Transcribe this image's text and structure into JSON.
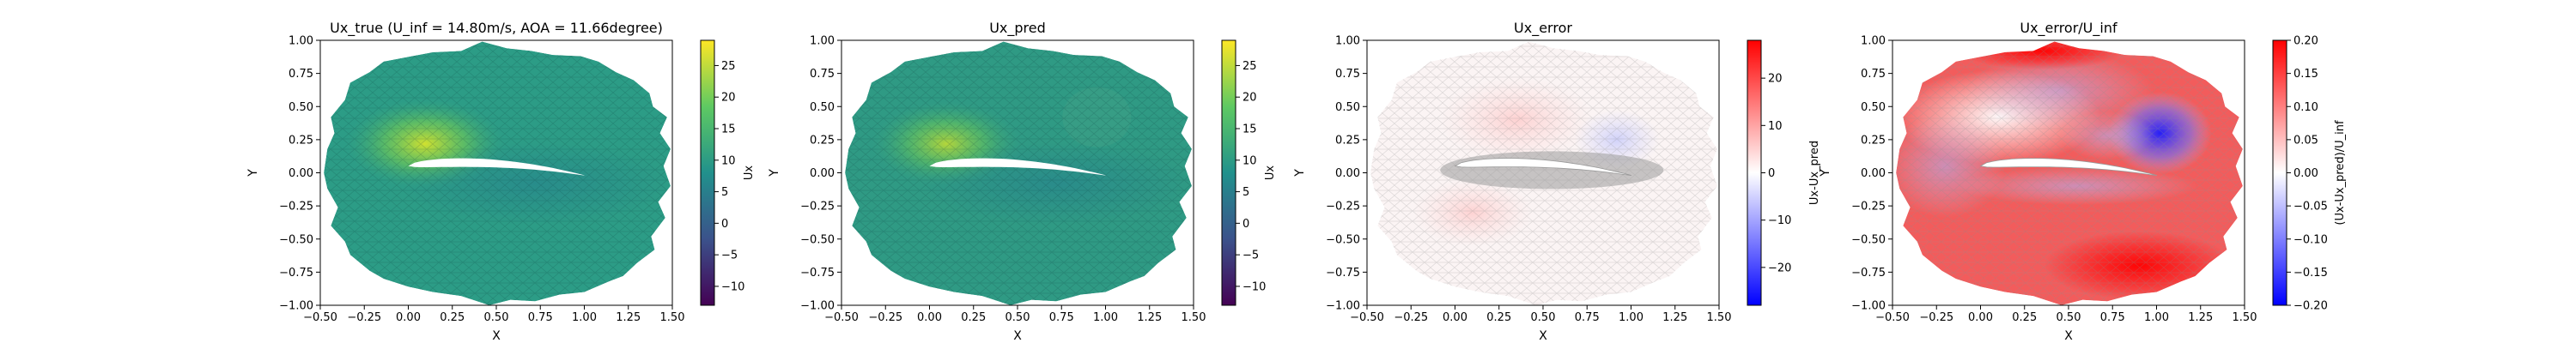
{
  "chart_data": [
    {
      "type": "heatmap",
      "title": "Ux_true (U_inf = 14.80m/s, AOA = 11.66degree)",
      "xlabel": "X",
      "ylabel": "Y",
      "xlim": [
        -0.5,
        1.5
      ],
      "ylim": [
        -1.0,
        1.0
      ],
      "xticks": [
        "−0.50",
        "−0.25",
        "0.00",
        "0.25",
        "0.50",
        "0.75",
        "1.00",
        "1.25",
        "1.50"
      ],
      "yticks": [
        "−1.00",
        "−0.75",
        "−0.50",
        "−0.25",
        "0.00",
        "0.25",
        "0.50",
        "0.75",
        "1.00"
      ],
      "colorbar": {
        "label": "Ux",
        "colormap": "viridis",
        "range": [
          -13,
          29
        ],
        "ticks": [
          -10,
          -5,
          0,
          5,
          10,
          15,
          20,
          25
        ],
        "tick_labels": [
          "−10",
          "−5",
          "0",
          "5",
          "10",
          "15",
          "20",
          "25"
        ]
      },
      "colors": {
        "field": "#2c9c86",
        "high": "#c9df32",
        "low": "#440154"
      }
    },
    {
      "type": "heatmap",
      "title": "Ux_pred",
      "xlabel": "X",
      "ylabel": "Y",
      "xlim": [
        -0.5,
        1.5
      ],
      "ylim": [
        -1.0,
        1.0
      ],
      "xticks": [
        "−0.50",
        "−0.25",
        "0.00",
        "0.25",
        "0.50",
        "0.75",
        "1.00",
        "1.25",
        "1.50"
      ],
      "yticks": [
        "−1.00",
        "−0.75",
        "−0.50",
        "−0.25",
        "0.00",
        "0.25",
        "0.50",
        "0.75",
        "1.00"
      ],
      "colorbar": {
        "label": "Ux",
        "colormap": "viridis",
        "range": [
          -13,
          29
        ],
        "ticks": [
          -10,
          -5,
          0,
          5,
          10,
          15,
          20,
          25
        ],
        "tick_labels": [
          "−10",
          "−5",
          "0",
          "5",
          "10",
          "15",
          "20",
          "25"
        ]
      },
      "colors": {
        "field": "#2f9a84",
        "high": "#b7d935",
        "low": "#440154"
      }
    },
    {
      "type": "heatmap",
      "title": "Ux_error",
      "xlabel": "X",
      "ylabel": "Y",
      "xlim": [
        -0.5,
        1.5
      ],
      "ylim": [
        -1.0,
        1.0
      ],
      "xticks": [
        "−0.50",
        "−0.25",
        "0.00",
        "0.25",
        "0.50",
        "0.75",
        "1.00",
        "1.25",
        "1.50"
      ],
      "yticks": [
        "−1.00",
        "−0.75",
        "−0.50",
        "−0.25",
        "0.00",
        "0.25",
        "0.50",
        "0.75",
        "1.00"
      ],
      "colorbar": {
        "label": "Ux-Ux_pred",
        "colormap": "bwr",
        "range": [
          -28,
          28
        ],
        "ticks": [
          -20,
          -10,
          0,
          10,
          20
        ],
        "tick_labels": [
          "−20",
          "−10",
          "0",
          "10",
          "20"
        ]
      },
      "colors": {
        "field": "#fbf4f4",
        "high": "#ff0000",
        "low": "#0000ff"
      }
    },
    {
      "type": "heatmap",
      "title": "Ux_error/U_inf",
      "xlabel": "X",
      "ylabel": "Y",
      "xlim": [
        -0.5,
        1.5
      ],
      "ylim": [
        -1.0,
        1.0
      ],
      "xticks": [
        "−0.50",
        "−0.25",
        "0.00",
        "0.25",
        "0.50",
        "0.75",
        "1.00",
        "1.25",
        "1.50"
      ],
      "yticks": [
        "−1.00",
        "−0.75",
        "−0.50",
        "−0.25",
        "0.00",
        "0.25",
        "0.50",
        "0.75",
        "1.00"
      ],
      "colorbar": {
        "label": "(Ux-Ux_pred)/U_inf",
        "colormap": "bwr",
        "range": [
          -0.2,
          0.2
        ],
        "ticks": [
          -0.2,
          -0.15,
          -0.1,
          -0.05,
          0.0,
          0.05,
          0.1,
          0.15,
          0.2
        ],
        "tick_labels": [
          "−0.20",
          "−0.15",
          "−0.10",
          "−0.05",
          "0.00",
          "0.05",
          "0.10",
          "0.15",
          "0.20"
        ]
      },
      "colors": {
        "field": "#f25c5c",
        "high": "#ff0000",
        "low": "#0000ff"
      }
    }
  ]
}
